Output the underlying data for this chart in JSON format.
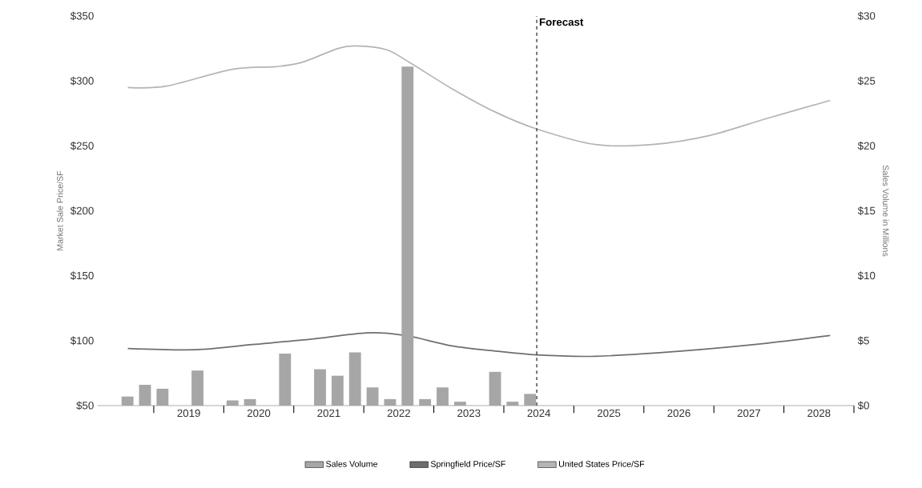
{
  "chart_data": {
    "type": "line",
    "ylabel": "Market Sale Price/SF",
    "y2label": "Sales Volume in Millions",
    "xlim": [
      2018.2,
      2029
    ],
    "xticks": [
      {
        "value": 2019,
        "label": null
      },
      {
        "value": 2020,
        "label": null
      },
      {
        "value": 2021,
        "label": null
      },
      {
        "value": 2022,
        "label": null
      },
      {
        "value": 2023,
        "label": null
      },
      {
        "value": 2024,
        "label": null
      },
      {
        "value": 2025,
        "label": null
      },
      {
        "value": 2026,
        "label": null
      },
      {
        "value": 2027,
        "label": null
      },
      {
        "value": 2028,
        "label": null
      },
      {
        "value": 2029,
        "label": null
      },
      {
        "value": 2019.5,
        "label": "2019"
      },
      {
        "value": 2020.5,
        "label": "2020"
      },
      {
        "value": 2021.5,
        "label": "2021"
      },
      {
        "value": 2022.5,
        "label": "2022"
      },
      {
        "value": 2023.5,
        "label": "2023"
      },
      {
        "value": 2024.5,
        "label": "2024"
      },
      {
        "value": 2025.5,
        "label": "2025"
      },
      {
        "value": 2026.5,
        "label": "2026"
      },
      {
        "value": 2027.5,
        "label": "2027"
      },
      {
        "value": 2028.5,
        "label": "2028"
      }
    ],
    "ylim": [
      50,
      350
    ],
    "yticks": [
      {
        "value": 50,
        "label": "$50"
      },
      {
        "value": 100,
        "label": "$100"
      },
      {
        "value": 150,
        "label": "$150"
      },
      {
        "value": 200,
        "label": "$200"
      },
      {
        "value": 250,
        "label": "$250"
      },
      {
        "value": 300,
        "label": "$300"
      },
      {
        "value": 350,
        "label": "$350"
      }
    ],
    "y2lim": [
      0,
      30
    ],
    "y2ticks": [
      {
        "value": 0,
        "label": "$0"
      },
      {
        "value": 5,
        "label": "$5"
      },
      {
        "value": 10,
        "label": "$10"
      },
      {
        "value": 15,
        "label": "$15"
      },
      {
        "value": 20,
        "label": "$20"
      },
      {
        "value": 25,
        "label": "$25"
      },
      {
        "value": 30,
        "label": "$30"
      }
    ],
    "series": [
      {
        "name": "Sales Volume",
        "type": "bar",
        "axis": "y2",
        "color": "#a6a6a6",
        "x": [
          2018.625,
          2018.875,
          2019.125,
          2019.375,
          2019.625,
          2019.875,
          2020.125,
          2020.375,
          2020.625,
          2020.875,
          2021.125,
          2021.375,
          2021.625,
          2021.875,
          2022.125,
          2022.375,
          2022.625,
          2022.875,
          2023.125,
          2023.375,
          2023.625,
          2023.875,
          2024.125,
          2024.375
        ],
        "values": [
          0.7,
          1.6,
          1.3,
          0,
          2.7,
          0,
          0.4,
          0.5,
          0,
          4.0,
          0,
          2.8,
          2.3,
          4.1,
          1.4,
          0.5,
          26.1,
          0.5,
          1.4,
          0.3,
          0,
          2.6,
          0.3,
          0.9
        ]
      },
      {
        "name": "Springfield  Price/SF",
        "color": "#6e6e6e",
        "x": [
          2018.63,
          2019.59,
          2020.41,
          2021.23,
          2022.04,
          2022.59,
          2023.26,
          2023.88,
          2024.47,
          2025.31,
          2026.53,
          2027.75,
          2028.66
        ],
        "values": [
          94,
          93,
          97,
          101,
          106,
          104,
          96,
          92,
          89,
          88,
          92,
          98,
          104
        ]
      },
      {
        "name": "United States Price/SF",
        "color": "#b4b4b4",
        "x": [
          2018.63,
          2019.18,
          2020.12,
          2020.74,
          2021.1,
          2021.63,
          2021.88,
          2022.33,
          2022.69,
          2023.26,
          2023.88,
          2024.47,
          2025.31,
          2026.12,
          2026.94,
          2027.75,
          2028.66
        ],
        "values": [
          295,
          296,
          309,
          311,
          314,
          325,
          327,
          324,
          313,
          294,
          276,
          263,
          251,
          251,
          258,
          271,
          285
        ]
      }
    ],
    "ref_lines": [
      {
        "axis": "x",
        "value": 2024.47,
        "label": "Forecast",
        "color": "#000000",
        "line_style": "dashed"
      }
    ],
    "legend": "bottom"
  }
}
